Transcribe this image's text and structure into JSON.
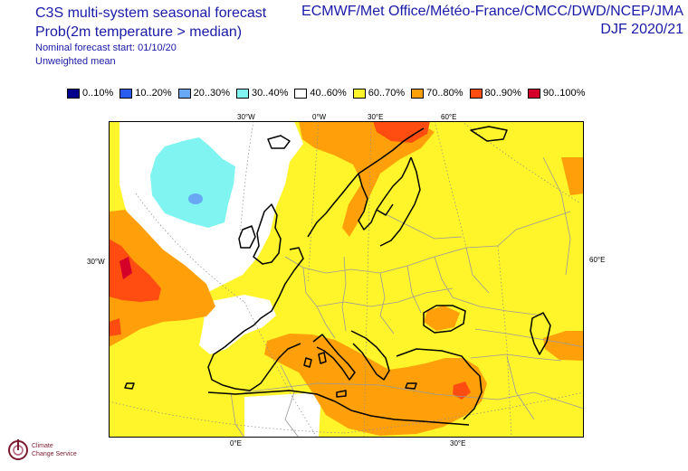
{
  "header": {
    "title_line1": "C3S multi-system seasonal forecast",
    "title_line2": "Prob(2m temperature > median)",
    "title_line3": "Nominal forecast start: 01/10/20",
    "title_line4": "Unweighted mean",
    "systems": "ECMWF/Met Office/Météo-France/CMCC/DWD/NCEP/JMA",
    "season": "DJF 2020/21"
  },
  "legend": [
    {
      "label": "0..10%",
      "color": "#00008c"
    },
    {
      "label": "10..20%",
      "color": "#2b5cf0"
    },
    {
      "label": "20..30%",
      "color": "#6aa8f5"
    },
    {
      "label": "30..40%",
      "color": "#7ff4f0"
    },
    {
      "label": "40..60%",
      "color": "#ffffff"
    },
    {
      "label": "60..70%",
      "color": "#fff52a"
    },
    {
      "label": "70..80%",
      "color": "#ffa00a"
    },
    {
      "label": "80..90%",
      "color": "#ff4c10"
    },
    {
      "label": "90..100%",
      "color": "#d4002a"
    }
  ],
  "coordinate_labels": {
    "top": [
      "30°W",
      "0°W",
      "30°E",
      "60°E"
    ],
    "left": "30°W",
    "right": "60°E",
    "bottom": [
      "0°E",
      "30°E"
    ]
  },
  "logo": {
    "line1": "Climate",
    "line2": "Change Service"
  }
}
